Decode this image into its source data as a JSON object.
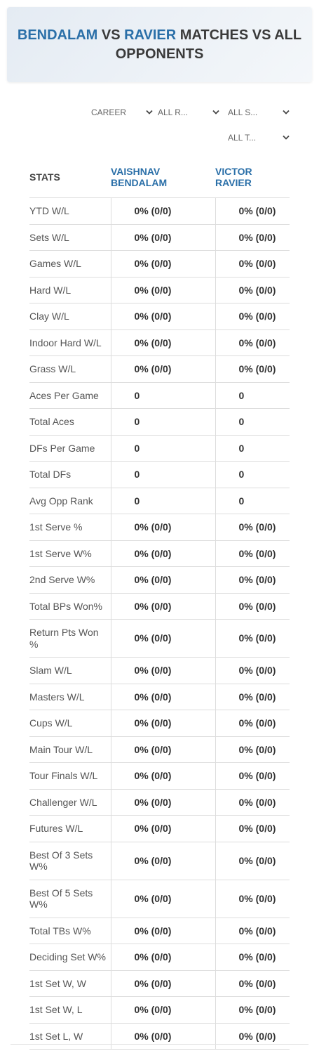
{
  "header": {
    "title": {
      "player1": "BENDALAM",
      "vs": "VS",
      "player2": "RAVIER",
      "rest": "MATCHES VS ALL OPPONENTS"
    }
  },
  "filters": [
    "CAREER",
    "ALL R...",
    "ALL S...",
    "ALL T..."
  ],
  "table": {
    "columns": [
      "STATS",
      "VAISHNAV BENDALAM",
      "VICTOR RAVIER"
    ],
    "rows": [
      [
        "YTD W/L",
        "0% (0/0)",
        "0% (0/0)"
      ],
      [
        "Sets W/L",
        "0% (0/0)",
        "0% (0/0)"
      ],
      [
        "Games W/L",
        "0% (0/0)",
        "0% (0/0)"
      ],
      [
        "Hard W/L",
        "0% (0/0)",
        "0% (0/0)"
      ],
      [
        "Clay W/L",
        "0% (0/0)",
        "0% (0/0)"
      ],
      [
        "Indoor Hard W/L",
        "0% (0/0)",
        "0% (0/0)"
      ],
      [
        "Grass W/L",
        "0% (0/0)",
        "0% (0/0)"
      ],
      [
        "Aces Per Game",
        "0",
        "0"
      ],
      [
        "Total Aces",
        "0",
        "0"
      ],
      [
        "DFs Per Game",
        "0",
        "0"
      ],
      [
        "Total DFs",
        "0",
        "0"
      ],
      [
        "Avg Opp Rank",
        "0",
        "0"
      ],
      [
        "1st Serve %",
        "0% (0/0)",
        "0% (0/0)"
      ],
      [
        "1st Serve W%",
        "0% (0/0)",
        "0% (0/0)"
      ],
      [
        "2nd Serve W%",
        "0% (0/0)",
        "0% (0/0)"
      ],
      [
        "Total BPs Won%",
        "0% (0/0)",
        "0% (0/0)"
      ],
      [
        "Return Pts Won %",
        "0% (0/0)",
        "0% (0/0)"
      ],
      [
        "Slam W/L",
        "0% (0/0)",
        "0% (0/0)"
      ],
      [
        "Masters W/L",
        "0% (0/0)",
        "0% (0/0)"
      ],
      [
        "Cups W/L",
        "0% (0/0)",
        "0% (0/0)"
      ],
      [
        "Main Tour W/L",
        "0% (0/0)",
        "0% (0/0)"
      ],
      [
        "Tour Finals W/L",
        "0% (0/0)",
        "0% (0/0)"
      ],
      [
        "Challenger W/L",
        "0% (0/0)",
        "0% (0/0)"
      ],
      [
        "Futures W/L",
        "0% (0/0)",
        "0% (0/0)"
      ],
      [
        "Best Of 3 Sets W%",
        "0% (0/0)",
        "0% (0/0)"
      ],
      [
        "Best Of 5 Sets W%",
        "0% (0/0)",
        "0% (0/0)"
      ],
      [
        "Total TBs W%",
        "0% (0/0)",
        "0% (0/0)"
      ],
      [
        "Deciding Set W%",
        "0% (0/0)",
        "0% (0/0)"
      ],
      [
        "1st Set W, W",
        "0% (0/0)",
        "0% (0/0)"
      ],
      [
        "1st Set W, L",
        "0% (0/0)",
        "0% (0/0)"
      ],
      [
        "1st Set L, W",
        "0% (0/0)",
        "0% (0/0)"
      ]
    ]
  }
}
